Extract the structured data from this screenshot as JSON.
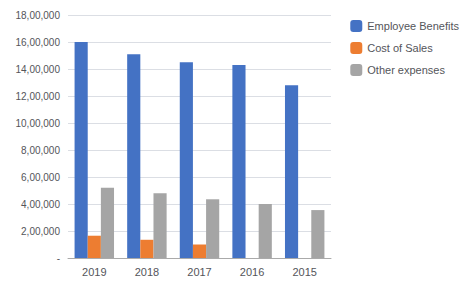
{
  "chart_data": {
    "type": "bar",
    "categories": [
      "2019",
      "2018",
      "2017",
      "2016",
      "2015"
    ],
    "series": [
      {
        "name": "Employee Benefits",
        "color": "#4472C4",
        "values": [
          1600000,
          1510000,
          1450000,
          1430000,
          1280000
        ]
      },
      {
        "name": "Cost of Sales",
        "color": "#ED7D31",
        "values": [
          165000,
          135000,
          100000,
          0,
          0
        ]
      },
      {
        "name": "Other expenses",
        "color": "#A5A5A5",
        "values": [
          520000,
          480000,
          435000,
          400000,
          355000
        ]
      }
    ],
    "ylim": [
      0,
      1800000
    ],
    "yticks": [
      {
        "value": 0,
        "label": "-"
      },
      {
        "value": 200000,
        "label": "2,00,000"
      },
      {
        "value": 400000,
        "label": "4,00,000"
      },
      {
        "value": 600000,
        "label": "6,00,000"
      },
      {
        "value": 800000,
        "label": "8,00,000"
      },
      {
        "value": 1000000,
        "label": "10,00,000"
      },
      {
        "value": 1200000,
        "label": "12,00,000"
      },
      {
        "value": 1400000,
        "label": "14,00,000"
      },
      {
        "value": 1600000,
        "label": "16,00,000"
      },
      {
        "value": 1800000,
        "label": "18,00,000"
      }
    ],
    "grid": true,
    "legend": "upper right"
  }
}
